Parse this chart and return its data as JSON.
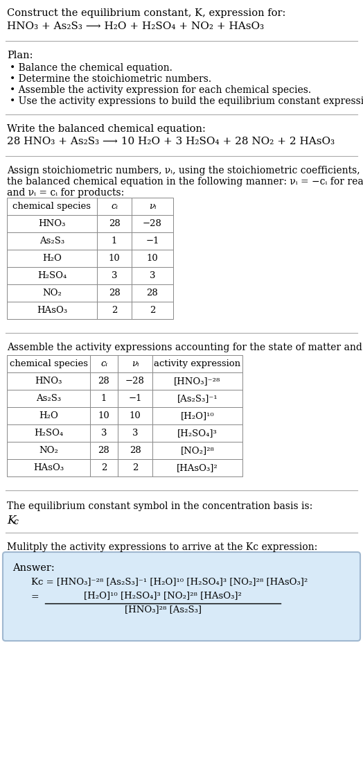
{
  "bg_color": "#ffffff",
  "text_color": "#000000",
  "figsize": [
    5.24,
    11.03
  ],
  "dpi": 100,
  "sections": {
    "title1": "Construct the equilibrium constant, K, expression for:",
    "reaction": "HNO₃ + As₂S₃ ⟶ H₂O + H₂SO₄ + NO₂ + HAsO₃",
    "plan_title": "Plan:",
    "plan_items": [
      "• Balance the chemical equation.",
      "• Determine the stoichiometric numbers.",
      "• Assemble the activity expression for each chemical species.",
      "• Use the activity expressions to build the equilibrium constant expression."
    ],
    "balanced_title": "Write the balanced chemical equation:",
    "balanced_eq": "28 HNO₃ + As₂S₃ ⟶ 10 H₂O + 3 H₂SO₄ + 28 NO₂ + 2 HAsO₃",
    "stoich_text1": "Assign stoichiometric numbers, νᵢ, using the stoichiometric coefficients, cᵢ, from",
    "stoich_text2": "the balanced chemical equation in the following manner: νᵢ = −cᵢ for reactants",
    "stoich_text3": "and νᵢ = cᵢ for products:",
    "table1_header": [
      "chemical species",
      "ci",
      "vi"
    ],
    "table1_rows": [
      [
        "HNO₃",
        "28",
        "−28"
      ],
      [
        "As₂S₃",
        "1",
        "−1"
      ],
      [
        "H₂O",
        "10",
        "10"
      ],
      [
        "H₂SO₄",
        "3",
        "3"
      ],
      [
        "NO₂",
        "28",
        "28"
      ],
      [
        "HAsO₃",
        "2",
        "2"
      ]
    ],
    "activity_text": "Assemble the activity expressions accounting for the state of matter and νᵢ:",
    "table2_header": [
      "chemical species",
      "ci",
      "vi",
      "activity expression"
    ],
    "table2_rows": [
      [
        "HNO₃",
        "28",
        "−28",
        "[HNO₃]⁻²⁸"
      ],
      [
        "As₂S₃",
        "1",
        "−1",
        "[As₂S₃]⁻¹"
      ],
      [
        "H₂O",
        "10",
        "10",
        "[H₂O]¹⁰"
      ],
      [
        "H₂SO₄",
        "3",
        "3",
        "[H₂SO₄]³"
      ],
      [
        "NO₂",
        "28",
        "28",
        "[NO₂]²⁸"
      ],
      [
        "HAsO₃",
        "2",
        "2",
        "[HAsO₃]²"
      ]
    ],
    "kc_text": "The equilibrium constant symbol in the concentration basis is:",
    "kc_symbol": "Kc",
    "mult_text": "Mulitply the activity expressions to arrive at the Kc expression:",
    "ans_label": "Answer:",
    "ans_line1a": "Kc = [HNO₃]",
    "ans_line1b": "⁻²⁸",
    "ans_line1_full": "Kc = [HNO₃]⁻²⁸ [As₂S₃]⁻¹ [H₂O]¹⁰ [H₂SO₄]³ [NO₂]²⁸ [HAsO₃]²",
    "ans_num": "[H₂O]¹⁰ [H₂SO₄]³ [NO₂]²⁸ [HAsO₃]²",
    "ans_den": "[HNO₃]²⁸ [As₂S₃]",
    "ans_equals": "="
  },
  "hline_color": "#aaaaaa",
  "table_border_color": "#888888",
  "table_bg": "#ffffff",
  "answer_bg": "#d8eaf8",
  "answer_border": "#a0b8d0"
}
